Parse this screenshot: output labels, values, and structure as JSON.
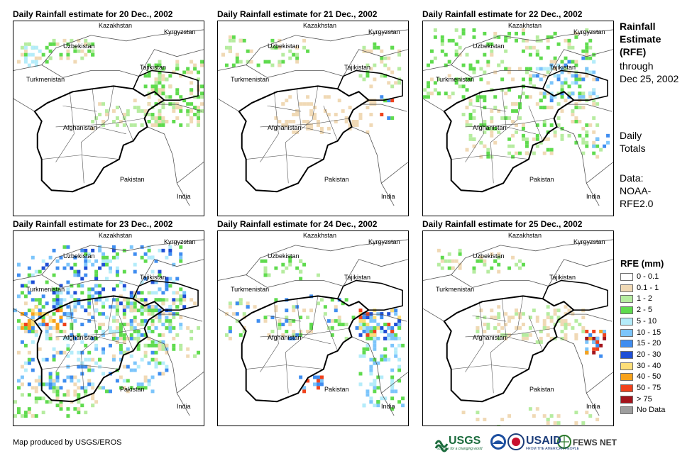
{
  "panels": [
    {
      "title": "Daily Rainfall estimate for 20 Dec., 2002",
      "intensity": "light-north"
    },
    {
      "title": "Daily Rainfall estimate for 21 Dec., 2002",
      "intensity": "very-light"
    },
    {
      "title": "Daily Rainfall estimate for 22 Dec., 2002",
      "intensity": "moderate-north"
    },
    {
      "title": "Daily Rainfall estimate for 23 Dec., 2002",
      "intensity": "heavy-widespread"
    },
    {
      "title": "Daily Rainfall estimate for 24 Dec., 2002",
      "intensity": "east-heavy"
    },
    {
      "title": "Daily Rainfall estimate for 25 Dec., 2002",
      "intensity": "light-east"
    }
  ],
  "country_labels": {
    "kazakhstan": "Kazakhstan",
    "kyrgyzstan": "Kyrgyzstan",
    "uzbekistan": "Uzbekistan",
    "tajikistan": "Tajikistan",
    "turkmenistan": "Turkmenistan",
    "afghanistan": "Afghanistan",
    "pakistan": "Pakistan",
    "india": "India"
  },
  "sidebar": {
    "heading_lines": [
      "Rainfall",
      "Estimate",
      "(RFE)"
    ],
    "through_lines": [
      "through",
      "Dec 25, 2002"
    ],
    "daily_lines": [
      "Daily",
      "Totals"
    ],
    "data_lines": [
      "Data:",
      "NOAA-",
      "RFE2.0"
    ]
  },
  "legend": {
    "title": "RFE (mm)",
    "items": [
      {
        "label": "0 - 0.1",
        "color": "#ffffff"
      },
      {
        "label": "0.1 - 1",
        "color": "#f0d9b5"
      },
      {
        "label": "1 - 2",
        "color": "#b6eca0"
      },
      {
        "label": "2 - 5",
        "color": "#5fdb4e"
      },
      {
        "label": "5 - 10",
        "color": "#b4ecfa"
      },
      {
        "label": "10 - 15",
        "color": "#7cc5fb"
      },
      {
        "label": "15 - 20",
        "color": "#3f8df0"
      },
      {
        "label": "20 - 30",
        "color": "#1f4fd6"
      },
      {
        "label": "30 - 40",
        "color": "#fcde78"
      },
      {
        "label": "40 - 50",
        "color": "#f7a21c"
      },
      {
        "label": "50 - 75",
        "color": "#f0421c"
      },
      {
        "label": "> 75",
        "color": "#a3141c"
      },
      {
        "label": "No Data",
        "color": "#9e9e9e"
      }
    ]
  },
  "footer": {
    "credit": "Map produced by USGS/EROS",
    "logos": {
      "usgs": "USGS",
      "usgs_tag": "science for a changing world",
      "noaa": "NOAA",
      "usaid": "USAID",
      "usaid_tag": "FROM THE AMERICAN PEOPLE",
      "fews": "FEWS NET"
    }
  }
}
